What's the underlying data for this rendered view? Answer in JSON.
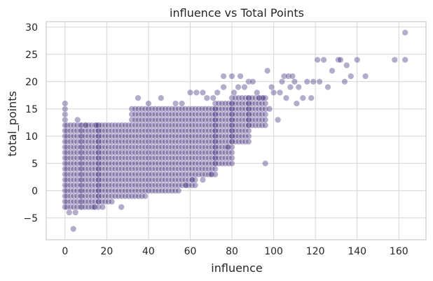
{
  "chart_data": {
    "type": "scatter",
    "title": "influence vs Total Points",
    "xlabel": "influence",
    "ylabel": "total_points",
    "xlim": [
      -9,
      173
    ],
    "ylim": [
      -9,
      31
    ],
    "x_ticks": [
      0,
      20,
      40,
      60,
      80,
      100,
      120,
      140,
      160
    ],
    "y_ticks": [
      -5,
      0,
      5,
      10,
      15,
      20,
      25,
      30
    ],
    "grid": true,
    "marker_color": "#4b3a84",
    "marker_opacity": 0.42,
    "points": [
      {
        "x": 0,
        "y": -3
      },
      {
        "x": 0,
        "y": -2
      },
      {
        "x": 0,
        "y": -1
      },
      {
        "x": 0,
        "y": 0
      },
      {
        "x": 0,
        "y": 1
      },
      {
        "x": 0,
        "y": 2
      },
      {
        "x": 0,
        "y": 3
      },
      {
        "x": 0,
        "y": 4
      },
      {
        "x": 0,
        "y": 5
      },
      {
        "x": 0,
        "y": 6
      },
      {
        "x": 0,
        "y": 7
      },
      {
        "x": 0,
        "y": 8
      },
      {
        "x": 0,
        "y": 9
      },
      {
        "x": 0,
        "y": 10
      },
      {
        "x": 0,
        "y": 11
      },
      {
        "x": 0,
        "y": 12
      },
      {
        "x": 0,
        "y": 13
      },
      {
        "x": 0,
        "y": 14
      },
      {
        "x": 0,
        "y": 15
      },
      {
        "x": 0,
        "y": 16
      },
      {
        "x": 4,
        "y": -7
      },
      {
        "x": 2,
        "y": -4
      },
      {
        "x": 5,
        "y": -4
      },
      {
        "x": 6,
        "y": 13
      },
      {
        "x": 10,
        "y": 12
      },
      {
        "x": 15,
        "y": 12
      },
      {
        "x": 27,
        "y": -3
      },
      {
        "x": 18,
        "y": -3
      },
      {
        "x": 14,
        "y": -3
      },
      {
        "x": 58,
        "y": 1
      },
      {
        "x": 61,
        "y": 2
      },
      {
        "x": 66,
        "y": 2
      },
      {
        "x": 70,
        "y": 3
      },
      {
        "x": 35,
        "y": 17
      },
      {
        "x": 40,
        "y": 16
      },
      {
        "x": 46,
        "y": 17
      },
      {
        "x": 53,
        "y": 16
      },
      {
        "x": 56,
        "y": 16
      },
      {
        "x": 60,
        "y": 18
      },
      {
        "x": 63,
        "y": 18
      },
      {
        "x": 66,
        "y": 18
      },
      {
        "x": 68,
        "y": 17
      },
      {
        "x": 71,
        "y": 17
      },
      {
        "x": 73,
        "y": 18
      },
      {
        "x": 76,
        "y": 19
      },
      {
        "x": 76,
        "y": 21
      },
      {
        "x": 78,
        "y": 8
      },
      {
        "x": 80,
        "y": 21
      },
      {
        "x": 81,
        "y": 18
      },
      {
        "x": 83,
        "y": 19
      },
      {
        "x": 84,
        "y": 21
      },
      {
        "x": 86,
        "y": 19
      },
      {
        "x": 88,
        "y": 20
      },
      {
        "x": 90,
        "y": 20
      },
      {
        "x": 92,
        "y": 18
      },
      {
        "x": 93,
        "y": 17
      },
      {
        "x": 95,
        "y": 17
      },
      {
        "x": 96,
        "y": 5
      },
      {
        "x": 97,
        "y": 22
      },
      {
        "x": 98,
        "y": 15
      },
      {
        "x": 99,
        "y": 19
      },
      {
        "x": 100,
        "y": 18
      },
      {
        "x": 102,
        "y": 13
      },
      {
        "x": 103,
        "y": 18
      },
      {
        "x": 104,
        "y": 20
      },
      {
        "x": 105,
        "y": 21
      },
      {
        "x": 106,
        "y": 17
      },
      {
        "x": 107,
        "y": 21
      },
      {
        "x": 108,
        "y": 19
      },
      {
        "x": 109,
        "y": 21
      },
      {
        "x": 110,
        "y": 20
      },
      {
        "x": 111,
        "y": 16
      },
      {
        "x": 112,
        "y": 19
      },
      {
        "x": 114,
        "y": 17
      },
      {
        "x": 116,
        "y": 20
      },
      {
        "x": 118,
        "y": 17
      },
      {
        "x": 119,
        "y": 20
      },
      {
        "x": 121,
        "y": 24
      },
      {
        "x": 122,
        "y": 20
      },
      {
        "x": 124,
        "y": 24
      },
      {
        "x": 126,
        "y": 19
      },
      {
        "x": 128,
        "y": 22
      },
      {
        "x": 131,
        "y": 24
      },
      {
        "x": 132,
        "y": 24
      },
      {
        "x": 134,
        "y": 20
      },
      {
        "x": 135,
        "y": 23
      },
      {
        "x": 137,
        "y": 21
      },
      {
        "x": 140,
        "y": 24
      },
      {
        "x": 144,
        "y": 21
      },
      {
        "x": 158,
        "y": 24
      },
      {
        "x": 163,
        "y": 29
      },
      {
        "x": 163,
        "y": 24
      }
    ],
    "bands": [
      {
        "x_start": 1,
        "x_end": 8,
        "y_min": -3,
        "y_max": 12
      },
      {
        "x_start": 8,
        "x_end": 16,
        "y_min": -3,
        "y_max": 12
      },
      {
        "x_start": 16,
        "x_end": 24,
        "y_min": -2,
        "y_max": 12
      },
      {
        "x_start": 24,
        "x_end": 32,
        "y_min": -1,
        "y_max": 12
      },
      {
        "x_start": 32,
        "x_end": 40,
        "y_min": -1,
        "y_max": 15
      },
      {
        "x_start": 40,
        "x_end": 48,
        "y_min": 0,
        "y_max": 15
      },
      {
        "x_start": 48,
        "x_end": 56,
        "y_min": 0,
        "y_max": 15
      },
      {
        "x_start": 56,
        "x_end": 64,
        "y_min": 1,
        "y_max": 15
      },
      {
        "x_start": 64,
        "x_end": 72,
        "y_min": 3,
        "y_max": 15
      },
      {
        "x_start": 72,
        "x_end": 80,
        "y_min": 5,
        "y_max": 16
      },
      {
        "x_start": 80,
        "x_end": 88,
        "y_min": 9,
        "y_max": 17
      },
      {
        "x_start": 88,
        "x_end": 96,
        "y_min": 12,
        "y_max": 17
      }
    ]
  }
}
